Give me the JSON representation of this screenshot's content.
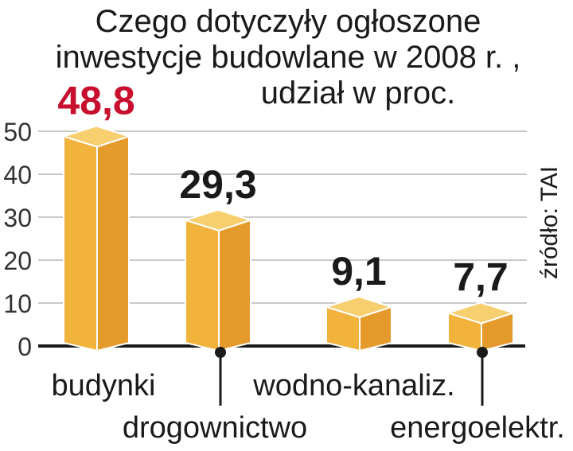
{
  "chart_data": {
    "type": "bar",
    "title_lines": [
      "Czego dotyczyły ogłoszone",
      "inwestycje budowlane w 2008 r. ,",
      "udział w proc."
    ],
    "categories": [
      "budynki",
      "drogownictwo",
      "wodno-kanaliz.",
      "energoelektr."
    ],
    "values": [
      48.8,
      29.3,
      9.1,
      7.7
    ],
    "value_labels": [
      "48,8",
      "29,3",
      "9,1",
      "7,7"
    ],
    "ylim": [
      0,
      50
    ],
    "yticks": [
      "0",
      "10",
      "20",
      "30",
      "40",
      "50"
    ],
    "source": "źródło: TAI",
    "grid": true,
    "colors": {
      "bar_front": "#f2b33d",
      "bar_side": "#e59a2c",
      "bar_top": "#f8cf6e",
      "highlight_label": "#c8102e",
      "text": "#1a1a1a",
      "grid": "#b8b8b8"
    }
  }
}
